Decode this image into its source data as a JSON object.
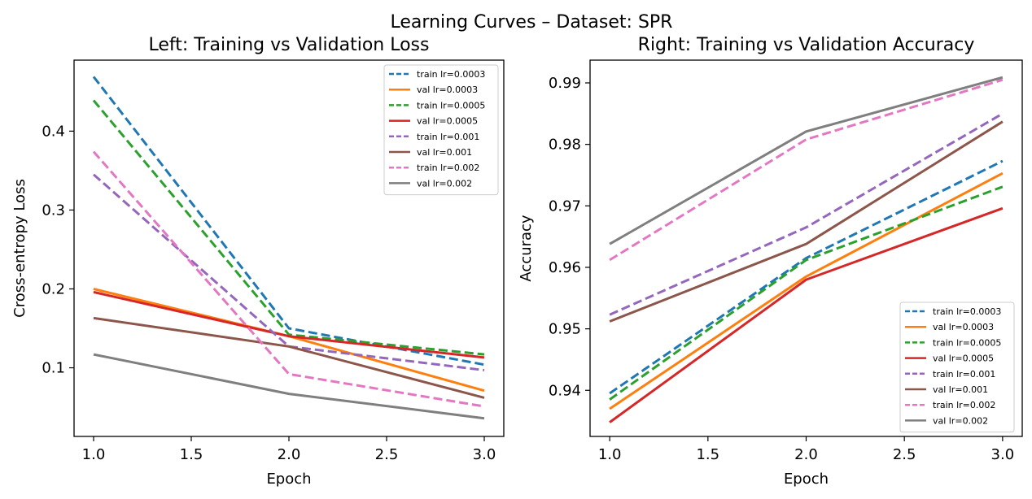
{
  "figure": {
    "suptitle": "Learning Curves – Dataset: SPR"
  },
  "chart_data": [
    {
      "type": "line",
      "title": "Left: Training vs Validation Loss",
      "xlabel": "Epoch",
      "ylabel": "Cross-entropy Loss",
      "xlim": [
        0.9,
        3.1
      ],
      "ylim": [
        0.013,
        0.49
      ],
      "xticks": [
        1.0,
        1.5,
        2.0,
        2.5,
        3.0
      ],
      "xtick_labels": [
        "1.0",
        "1.5",
        "2.0",
        "2.5",
        "3.0"
      ],
      "yticks": [
        0.1,
        0.2,
        0.3,
        0.4
      ],
      "ytick_labels": [
        "0.1",
        "0.2",
        "0.3",
        "0.4"
      ],
      "legend_position": "top-right",
      "grid": false,
      "x": [
        1,
        2,
        3
      ],
      "series": [
        {
          "name": "train lr=0.0003",
          "color": "#1f77b4",
          "dashed": true,
          "values": [
            0.469,
            0.15,
            0.104
          ]
        },
        {
          "name": "val lr=0.0003",
          "color": "#ff7f0e",
          "dashed": false,
          "values": [
            0.2,
            0.14,
            0.071
          ]
        },
        {
          "name": "train lr=0.0005",
          "color": "#2ca02c",
          "dashed": true,
          "values": [
            0.439,
            0.142,
            0.117
          ]
        },
        {
          "name": "val lr=0.0005",
          "color": "#d62728",
          "dashed": false,
          "values": [
            0.196,
            0.14,
            0.113
          ]
        },
        {
          "name": "train lr=0.001",
          "color": "#9467bd",
          "dashed": true,
          "values": [
            0.345,
            0.127,
            0.097
          ]
        },
        {
          "name": "val lr=0.001",
          "color": "#8c564b",
          "dashed": false,
          "values": [
            0.163,
            0.127,
            0.062
          ]
        },
        {
          "name": "train lr=0.002",
          "color": "#e377c2",
          "dashed": true,
          "values": [
            0.374,
            0.092,
            0.051
          ]
        },
        {
          "name": "val lr=0.002",
          "color": "#7f7f7f",
          "dashed": false,
          "values": [
            0.117,
            0.067,
            0.036
          ]
        }
      ]
    },
    {
      "type": "line",
      "title": "Right: Training vs Validation Accuracy",
      "xlabel": "Epoch",
      "ylabel": "Accuracy",
      "xlim": [
        0.9,
        3.1
      ],
      "ylim": [
        0.9325,
        0.9937
      ],
      "xticks": [
        1.0,
        1.5,
        2.0,
        2.5,
        3.0
      ],
      "xtick_labels": [
        "1.0",
        "1.5",
        "2.0",
        "2.5",
        "3.0"
      ],
      "yticks": [
        0.94,
        0.95,
        0.96,
        0.97,
        0.98,
        0.99
      ],
      "ytick_labels": [
        "0.94",
        "0.95",
        "0.96",
        "0.97",
        "0.98",
        "0.99"
      ],
      "legend_position": "bottom-right",
      "grid": false,
      "x": [
        1,
        2,
        3
      ],
      "series": [
        {
          "name": "train lr=0.0003",
          "color": "#1f77b4",
          "dashed": true,
          "values": [
            0.9395,
            0.9615,
            0.9773
          ]
        },
        {
          "name": "val lr=0.0003",
          "color": "#ff7f0e",
          "dashed": false,
          "values": [
            0.937,
            0.9585,
            0.9753
          ]
        },
        {
          "name": "train lr=0.0005",
          "color": "#2ca02c",
          "dashed": true,
          "values": [
            0.9385,
            0.9612,
            0.9731
          ]
        },
        {
          "name": "val lr=0.0005",
          "color": "#d62728",
          "dashed": false,
          "values": [
            0.9348,
            0.958,
            0.9696
          ]
        },
        {
          "name": "train lr=0.001",
          "color": "#9467bd",
          "dashed": true,
          "values": [
            0.9523,
            0.9665,
            0.985
          ]
        },
        {
          "name": "val lr=0.001",
          "color": "#8c564b",
          "dashed": false,
          "values": [
            0.9512,
            0.9638,
            0.9837
          ]
        },
        {
          "name": "train lr=0.002",
          "color": "#e377c2",
          "dashed": true,
          "values": [
            0.9612,
            0.9808,
            0.9905
          ]
        },
        {
          "name": "val lr=0.002",
          "color": "#7f7f7f",
          "dashed": false,
          "values": [
            0.9638,
            0.9821,
            0.9909
          ]
        }
      ]
    }
  ]
}
